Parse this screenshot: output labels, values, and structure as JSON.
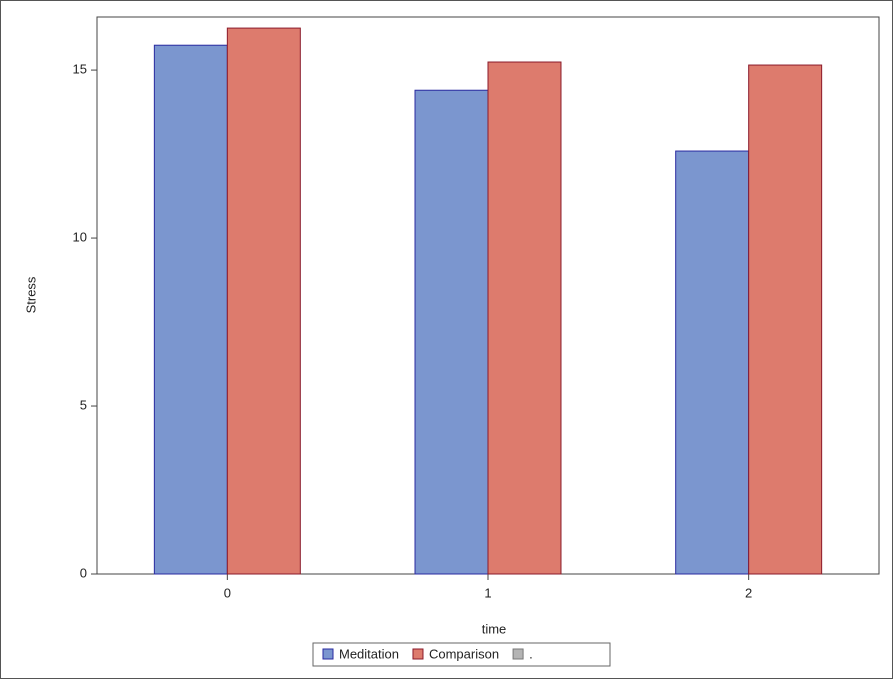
{
  "chart_data": {
    "type": "bar",
    "x_label": "time",
    "y_label": "Stress",
    "categories": [
      "0",
      "1",
      "2"
    ],
    "series": [
      {
        "name": "Meditation",
        "color": "#7b96cf",
        "values": [
          15.74,
          14.4,
          12.59
        ]
      },
      {
        "name": "Comparison",
        "color": "#dd7b6d",
        "values": [
          16.25,
          15.24,
          15.15
        ]
      },
      {
        "name": ".",
        "color": "#b4b4b4",
        "values": [
          null,
          null,
          null
        ]
      }
    ],
    "ylim": [
      0,
      16.58
    ],
    "yticks": [
      0,
      5,
      10,
      15
    ],
    "grid": false,
    "legend": "bottom"
  }
}
